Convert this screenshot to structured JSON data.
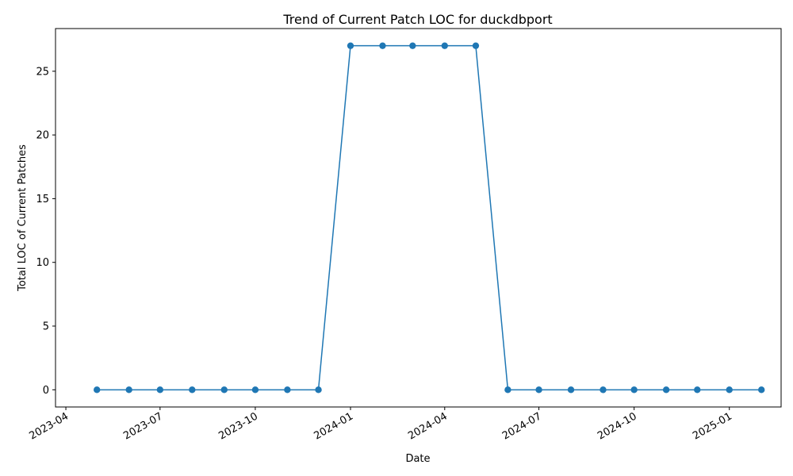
{
  "chart_data": {
    "type": "line",
    "title": "Trend of Current Patch LOC for duckdbport",
    "xlabel": "Date",
    "ylabel": "Total LOC of Current Patches",
    "x_ticks": [
      "2023-04",
      "2023-07",
      "2023-10",
      "2024-01",
      "2024-04",
      "2024-07",
      "2024-10",
      "2025-01"
    ],
    "y_ticks": [
      0,
      5,
      10,
      15,
      20,
      25
    ],
    "xlim": [
      "2023-03-22",
      "2025-02-20"
    ],
    "ylim": [
      -1.35,
      28.35
    ],
    "grid": false,
    "legend": "none",
    "series": [
      {
        "color": "#1f77b4",
        "marker": "circle",
        "x": [
          "2023-05-01",
          "2023-06-01",
          "2023-07-01",
          "2023-08-01",
          "2023-09-01",
          "2023-10-01",
          "2023-11-01",
          "2023-12-01",
          "2024-01-01",
          "2024-02-01",
          "2024-03-01",
          "2024-04-01",
          "2024-05-01",
          "2024-06-01",
          "2024-07-01",
          "2024-08-01",
          "2024-09-01",
          "2024-10-01",
          "2024-11-01",
          "2024-12-01",
          "2025-01-01",
          "2025-02-01"
        ],
        "y": [
          0,
          0,
          0,
          0,
          0,
          0,
          0,
          0,
          27,
          27,
          27,
          27,
          27,
          0,
          0,
          0,
          0,
          0,
          0,
          0,
          0,
          0
        ]
      }
    ]
  }
}
